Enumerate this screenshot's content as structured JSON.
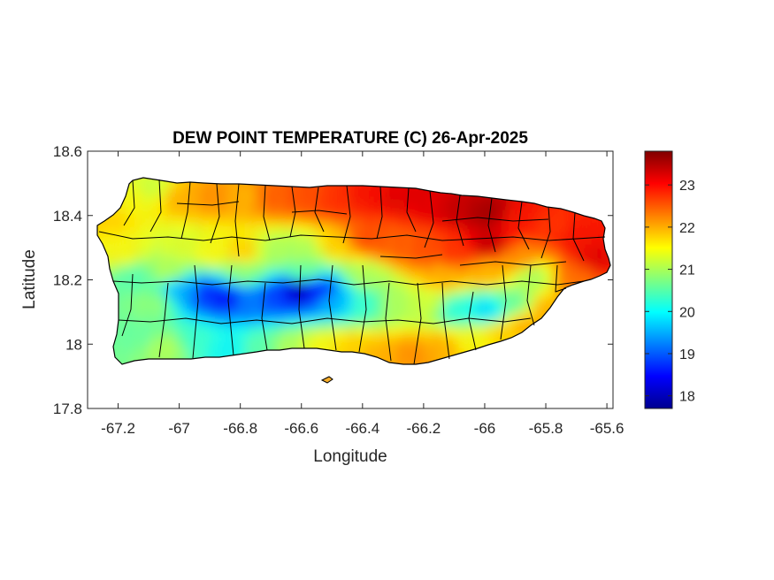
{
  "chart_data": {
    "type": "heatmap",
    "title": "DEW POINT TEMPERATURE (C) 26-Apr-2025",
    "xlabel": "Longitude",
    "ylabel": "Latitude",
    "xlim": [
      -67.3,
      -65.58
    ],
    "ylim": [
      17.8,
      18.6
    ],
    "xticks": [
      -67.2,
      -67,
      -66.8,
      -66.6,
      -66.4,
      -66.2,
      -66,
      -65.8,
      -65.6
    ],
    "xtick_labels": [
      "-67.2",
      "-67",
      "-66.8",
      "-66.6",
      "-66.4",
      "-66.2",
      "-66",
      "-65.8",
      "-65.6"
    ],
    "yticks": [
      17.8,
      18,
      18.2,
      18.4,
      18.6
    ],
    "ytick_labels": [
      "17.8",
      "18",
      "18.2",
      "18.4",
      "18.6"
    ],
    "colorbar": {
      "colormap": "jet",
      "range": [
        17.7,
        23.8
      ],
      "ticks": [
        18,
        19,
        20,
        21,
        22,
        23
      ],
      "tick_labels": [
        "18",
        "19",
        "20",
        "21",
        "22",
        "23"
      ]
    },
    "region": "Puerto Rico municipalities",
    "field_summary": [
      {
        "area": "northeast (around -66.0, 18.35)",
        "value": 23.5
      },
      {
        "area": "north-central coast (-66.3, 18.42)",
        "value": 23.0
      },
      {
        "area": "east coast (-65.7, 18.25)",
        "value": 23.0
      },
      {
        "area": "north coast (-66.5, 18.4)",
        "value": 22.5
      },
      {
        "area": "west coast (-67.2, 18.3)",
        "value": 21.5
      },
      {
        "area": "south coast (-66.3, 17.97)",
        "value": 22.0
      },
      {
        "area": "southwest (-67.1, 18.0)",
        "value": 20.5
      },
      {
        "area": "central ridge (-66.6, 18.16)",
        "value": 18.0
      },
      {
        "area": "central ridge (-66.9, 18.15)",
        "value": 18.5
      },
      {
        "area": "east-central interior (-66.0, 18.1)",
        "value": 20.0
      }
    ]
  }
}
